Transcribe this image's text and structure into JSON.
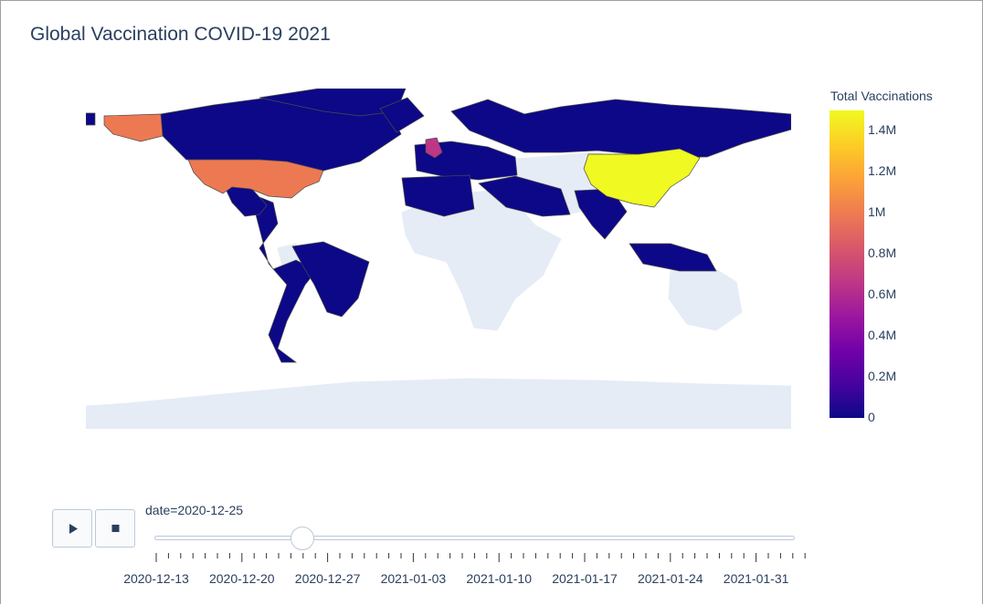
{
  "chart_data": {
    "type": "choropleth",
    "title": "Global Vaccination COVID-19 2021",
    "colorbar": {
      "title": "Total Vaccinations",
      "range": [
        0,
        1500000
      ],
      "ticks": [
        0,
        200000,
        400000,
        600000,
        800000,
        1000000,
        1200000,
        1400000
      ],
      "tick_labels": [
        "0",
        "0.2M",
        "0.4M",
        "0.6M",
        "0.8M",
        "1M",
        "1.2M",
        "1.4M"
      ],
      "colorscale": "plasma"
    },
    "regions": [
      {
        "region": "China",
        "value": 1500000
      },
      {
        "region": "United States",
        "value": 1000000
      },
      {
        "region": "United Kingdom",
        "value": 700000
      },
      {
        "region": "Canada",
        "value": 20000
      },
      {
        "region": "Russia",
        "value": 10000
      },
      {
        "region": "Mexico",
        "value": 0
      },
      {
        "region": "Brazil",
        "value": 0
      },
      {
        "region": "Argentina",
        "value": 0
      },
      {
        "region": "India",
        "value": 0
      },
      {
        "region": "Saudi Arabia",
        "value": 0
      },
      {
        "region": "Indonesia",
        "value": 0
      }
    ],
    "slider": {
      "current_label": "date=2020-12-25",
      "current_value": "2020-12-25",
      "range": [
        "2020-12-13",
        "2021-02-04"
      ],
      "tick_labels": [
        "2020-12-13",
        "2020-12-20",
        "2020-12-27",
        "2021-01-03",
        "2021-01-10",
        "2021-01-17",
        "2021-01-24",
        "2021-01-31"
      ]
    },
    "controls": {
      "play_icon": "play-icon",
      "stop_icon": "stop-icon"
    }
  }
}
